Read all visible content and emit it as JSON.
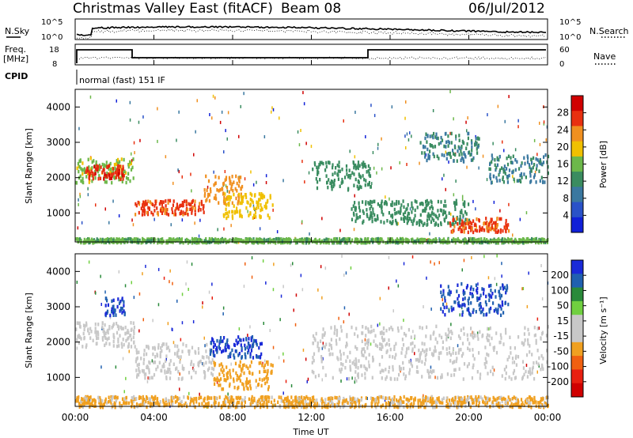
{
  "header": {
    "title": "Christmas Valley East (fitACF)",
    "beam": "Beam 08",
    "date": "06/Jul/2012"
  },
  "noise_panel": {
    "left_label": "N.Sky",
    "left_ticks": [
      "10^5",
      "10^0"
    ],
    "right_ticks": [
      "10^5",
      "10^0"
    ],
    "right_label": "N.Search"
  },
  "freq_panel": {
    "left_label_1": "Freq.",
    "left_label_2": "[MHz]",
    "left_ticks": [
      "18",
      "8"
    ],
    "right_ticks": [
      "60",
      "0"
    ],
    "right_label": "Nave"
  },
  "cpid": {
    "label": "CPID",
    "program": "normal (fast) 151 IF"
  },
  "colors": {
    "power": [
      "#1020d8",
      "#2a52c8",
      "#3a78a0",
      "#3a8c60",
      "#6cb84a",
      "#f0c000",
      "#f09020",
      "#e83010",
      "#d00000"
    ],
    "velocity": [
      "#1a2ad8",
      "#2060b0",
      "#2a8a3a",
      "#70d040",
      "#c8c8c8",
      "#c8c8c8",
      "#f0a020",
      "#f06010",
      "#e82010",
      "#d00000"
    ]
  },
  "chart_data": [
    {
      "type": "heatmap",
      "title": "",
      "quantity": "Power",
      "xlabel": "Time UT",
      "ylabel": "Slant Range [km]",
      "x_ticks": [
        "00:00",
        "04:00",
        "08:00",
        "12:00",
        "16:00",
        "20:00",
        "00:00"
      ],
      "y_ticks": [
        "1000",
        "2000",
        "3000",
        "4000"
      ],
      "xlim": [
        0,
        24
      ],
      "ylim": [
        180,
        4500
      ],
      "colorbar_label": "Power [dB]",
      "colorbar_ticks": [
        "4",
        "8",
        "12",
        "16",
        "20",
        "24",
        "28"
      ],
      "colorbar_range": [
        0,
        30
      ],
      "features": [
        {
          "t_start": 0.0,
          "t_end": 3.0,
          "range_km": [
            1900,
            2600
          ],
          "value": 16
        },
        {
          "t_start": 0.5,
          "t_end": 2.5,
          "range_km": [
            2000,
            2400
          ],
          "value": 26
        },
        {
          "t_start": 3.0,
          "t_end": 6.5,
          "range_km": [
            1000,
            1400
          ],
          "value": 24
        },
        {
          "t_start": 6.5,
          "t_end": 8.5,
          "range_km": [
            1300,
            2100
          ],
          "value": 22
        },
        {
          "t_start": 7.5,
          "t_end": 10.0,
          "range_km": [
            900,
            1600
          ],
          "value": 18
        },
        {
          "t_start": 12.0,
          "t_end": 15.0,
          "range_km": [
            1700,
            2500
          ],
          "value": 12
        },
        {
          "t_start": 14.0,
          "t_end": 20.0,
          "range_km": [
            700,
            1400
          ],
          "value": 12
        },
        {
          "t_start": 17.5,
          "t_end": 20.5,
          "range_km": [
            2500,
            3300
          ],
          "value": 10
        },
        {
          "t_start": 19.0,
          "t_end": 22.0,
          "range_km": [
            500,
            900
          ],
          "value": 24
        },
        {
          "t_start": 21.0,
          "t_end": 24.0,
          "range_km": [
            1900,
            2700
          ],
          "value": 10
        },
        {
          "t_start": 0.0,
          "t_end": 24.0,
          "range_km": [
            200,
            320
          ],
          "value": 14
        }
      ]
    },
    {
      "type": "heatmap",
      "title": "",
      "quantity": "Velocity",
      "xlabel": "Time UT",
      "ylabel": "Slant Range [km]",
      "x_ticks": [
        "00:00",
        "04:00",
        "08:00",
        "12:00",
        "16:00",
        "20:00",
        "00:00"
      ],
      "y_ticks": [
        "1000",
        "2000",
        "3000",
        "4000"
      ],
      "xlim": [
        0,
        24
      ],
      "ylim": [
        180,
        4500
      ],
      "colorbar_label": "Velocity [m s⁻¹]",
      "colorbar_ticks": [
        "200",
        "100",
        "50",
        "15",
        "-15",
        "-50",
        "-100",
        "-200"
      ],
      "colorbar_range": [
        -250,
        250
      ],
      "features": [
        {
          "t_start": 0.0,
          "t_end": 3.0,
          "range_km": [
            1900,
            2600
          ],
          "value": 0
        },
        {
          "t_start": 1.5,
          "t_end": 2.5,
          "range_km": [
            2800,
            3300
          ],
          "value": 200
        },
        {
          "t_start": 3.0,
          "t_end": 7.0,
          "range_km": [
            1000,
            2000
          ],
          "value": 0
        },
        {
          "t_start": 6.8,
          "t_end": 9.5,
          "range_km": [
            1600,
            2200
          ],
          "value": 200
        },
        {
          "t_start": 7.0,
          "t_end": 10.0,
          "range_km": [
            700,
            1500
          ],
          "value": -70
        },
        {
          "t_start": 12.0,
          "t_end": 24.0,
          "range_km": [
            1000,
            2500
          ],
          "value": 0
        },
        {
          "t_start": 18.5,
          "t_end": 22.0,
          "range_km": [
            2800,
            3700
          ],
          "value": 200
        },
        {
          "t_start": 0.0,
          "t_end": 24.0,
          "range_km": [
            200,
            500
          ],
          "value": -60
        }
      ]
    }
  ]
}
